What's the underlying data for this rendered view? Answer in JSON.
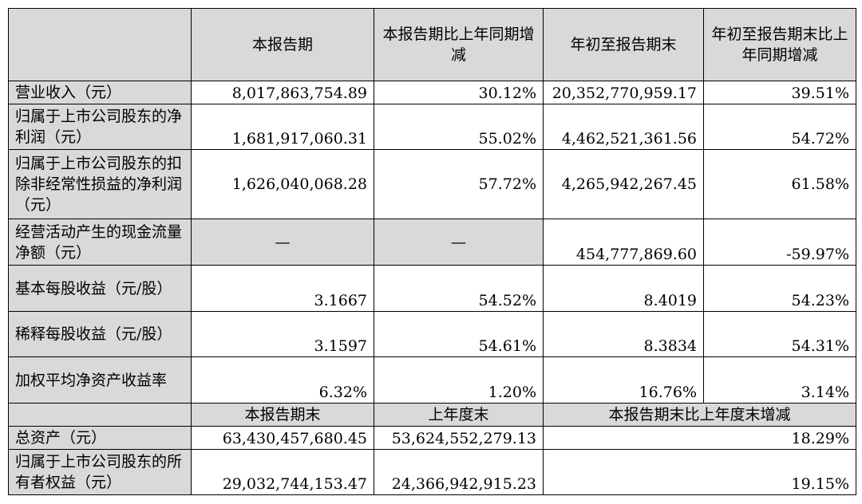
{
  "header": {
    "col1": "本报告期",
    "col2": "本报告期比上年同期增减",
    "col3": "年初至报告期末",
    "col4": "年初至报告期末比上年同期增减"
  },
  "rows": [
    {
      "label": "营业收入（元）",
      "v1": "8,017,863,754.89",
      "v2": "30.12%",
      "v3": "20,352,770,959.17",
      "v4": "39.51%"
    },
    {
      "label": "归属于上市公司股东的净利润（元）",
      "v1": "1,681,917,060.31",
      "v2": "55.02%",
      "v3": "4,462,521,361.56",
      "v4": "54.72%"
    },
    {
      "label": "归属于上市公司股东的扣除非经常性损益的净利润（元）",
      "v1": "1,626,040,068.28",
      "v2": "57.72%",
      "v3": "4,265,942,267.45",
      "v4": "61.58%"
    },
    {
      "label": "经营活动产生的现金流量净额（元）",
      "v1": "—",
      "v2": "—",
      "v3": "454,777,869.60",
      "v4": "-59.97%"
    },
    {
      "label": "基本每股收益（元/股）",
      "v1": "3.1667",
      "v2": "54.52%",
      "v3": "8.4019",
      "v4": "54.23%"
    },
    {
      "label": "稀释每股收益（元/股）",
      "v1": "3.1597",
      "v2": "54.61%",
      "v3": "8.3834",
      "v4": "54.31%"
    },
    {
      "label": "加权平均净资产收益率",
      "v1": "6.32%",
      "v2": "1.20%",
      "v3": "16.76%",
      "v4": "3.14%"
    }
  ],
  "subheader": {
    "col1": "本报告期末",
    "col2": "上年度末",
    "col3": "本报告期末比上年度末增减"
  },
  "bottom_rows": [
    {
      "label": "总资产（元）",
      "v1": "63,430,457,680.45",
      "v2": "53,624,552,279.13",
      "v3": "18.29%"
    },
    {
      "label": "归属于上市公司股东的所有者权益（元）",
      "v1": "29,032,744,153.47",
      "v2": "24,366,942,915.23",
      "v3": "19.15%"
    }
  ]
}
